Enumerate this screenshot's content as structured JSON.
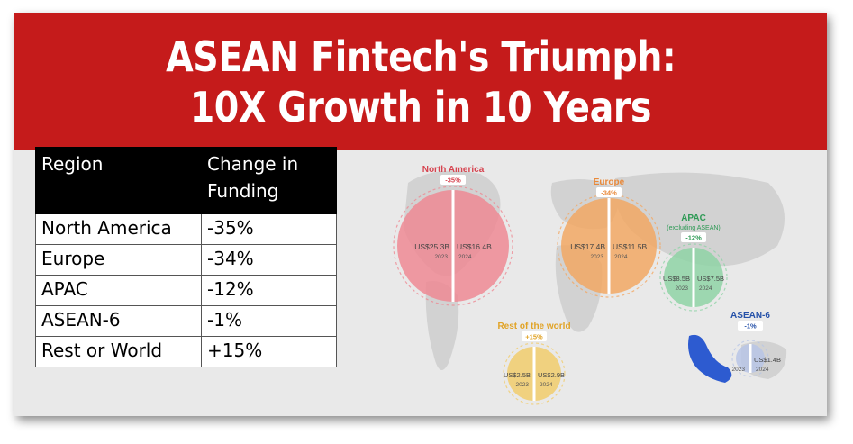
{
  "title": {
    "line1": "ASEAN Fintech's Triumph:",
    "line2": "10X Growth in 10 Years"
  },
  "table": {
    "headers": [
      "Region",
      "Change in Funding"
    ],
    "rows": [
      {
        "region": "North America",
        "change": "-35%"
      },
      {
        "region": "Europe",
        "change": "-34%"
      },
      {
        "region": "APAC",
        "change": "-12%"
      },
      {
        "region": "ASEAN-6",
        "change": "-1%"
      },
      {
        "region": "Rest or World",
        "change": "+15%"
      }
    ]
  },
  "map": {
    "regions": [
      {
        "name": "North America",
        "change": "-35%",
        "v2023": "US$25.3B",
        "v2024": "US$16.4B",
        "y1": "2023",
        "y2": "2024",
        "color": "#ee8a94"
      },
      {
        "name": "Europe",
        "change": "-34%",
        "v2023": "US$17.4B",
        "v2024": "US$11.5B",
        "y1": "2023",
        "y2": "2024",
        "color": "#f2a864"
      },
      {
        "name": "APAC",
        "sub": "(excluding ASEAN)",
        "change": "-12%",
        "v2023": "US$8.5B",
        "v2024": "US$7.5B",
        "y1": "2023",
        "y2": "2024",
        "color": "#8fd3a6"
      },
      {
        "name": "Rest of the world",
        "change": "+15%",
        "v2023": "US$2.5B",
        "v2024": "US$2.9B",
        "y1": "2023",
        "y2": "2024",
        "color": "#f1cc6c"
      },
      {
        "name": "ASEAN-6",
        "change": "-1%",
        "v2023": "",
        "v2024": "US$1.4B",
        "y1": "2023",
        "y2": "2024",
        "color": "#b8c6e6"
      }
    ],
    "title_colors": {
      "North America": "#d6434f",
      "Europe": "#e9893a",
      "APAC": "#2e9a55",
      "Rest of the world": "#e1a326",
      "ASEAN-6": "#2450a8"
    }
  }
}
